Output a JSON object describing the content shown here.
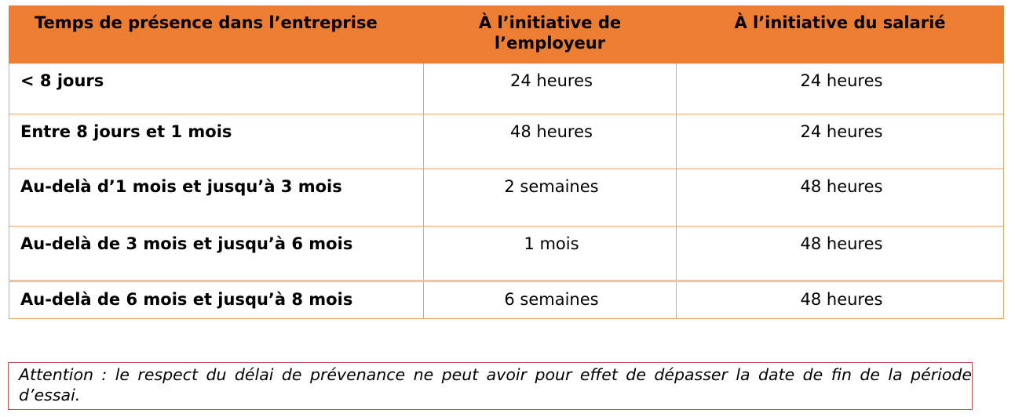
{
  "table": {
    "headers": [
      "Temps de présence dans l’entreprise",
      "À l’initiative de l’employeur",
      "À l’initiative du salarié"
    ],
    "rows": [
      {
        "duration": "< 8 jours",
        "employer": "24 heures",
        "employee": "24 heures"
      },
      {
        "duration": "Entre 8 jours et 1 mois",
        "employer": "48 heures",
        "employee": "24 heures"
      },
      {
        "duration": "Au-delà d’1 mois et jusqu’à 3 mois",
        "employer": "2 semaines",
        "employee": "48 heures"
      },
      {
        "duration": "Au-delà de 3 mois et jusqu’à 6 mois",
        "employer": "1 mois",
        "employee": "48 heures"
      },
      {
        "duration": "Au-delà de 6 mois et jusqu’à 8 mois",
        "employer": "6 semaines",
        "employee": "48 heures"
      }
    ]
  },
  "attention_note": "Attention : le respect du délai de prévenance ne peut avoir pour effet de dépasser la date de fin de la période d’essai.",
  "colors": {
    "header_bg": "#ed7d31",
    "cell_border": "#e8a26a",
    "note_border": "#c0504d"
  }
}
